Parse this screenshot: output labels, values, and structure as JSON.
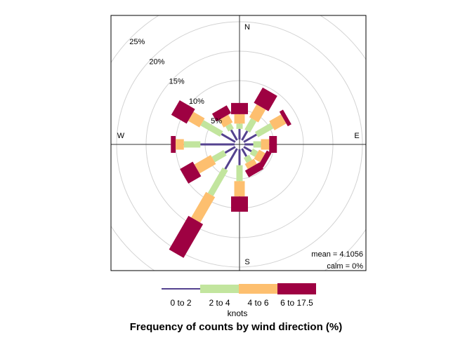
{
  "chart_data": {
    "type": "windrose",
    "title": "Frequency of counts by wind direction (%)",
    "legend_title": "knots",
    "compass": [
      "N",
      "E",
      "S",
      "W"
    ],
    "annotations": [
      "mean = 4.1056",
      "calm = 0%"
    ],
    "annotation_color": "#228b22",
    "x": [
      0,
      30,
      60,
      90,
      120,
      150,
      180,
      210,
      240,
      270,
      300,
      330
    ],
    "rlim": [
      0,
      25
    ],
    "rticks": [
      {
        "value": 5,
        "label": "5%"
      },
      {
        "value": 10,
        "label": "10%"
      },
      {
        "value": 15,
        "label": "15%"
      },
      {
        "value": 20,
        "label": "20%"
      },
      {
        "value": 25,
        "label": "25%"
      }
    ],
    "grid": true,
    "series": [
      {
        "name": "0 to 2",
        "color": "#54428f",
        "values": [
          1.8,
          1.8,
          2.5,
          1.5,
          1.5,
          1.5,
          2.7,
          4,
          2,
          5.8,
          2.7,
          2
        ]
      },
      {
        "name": "2 to 4",
        "color": "#c2e59e",
        "values": [
          0.9,
          2.2,
          3,
          1.3,
          1,
          1,
          2.7,
          5,
          2.3,
          2.8,
          3.8,
          1
        ]
      },
      {
        "name": "4 to 6",
        "color": "#fdbf6f",
        "values": [
          1.6,
          2.5,
          2.3,
          1.4,
          1.2,
          1,
          2.6,
          5,
          3.2,
          1.4,
          2.2,
          1.5
        ]
      },
      {
        "name": "6 to 17.5",
        "color": "#9e0142",
        "values": [
          1.9,
          3,
          0.7,
          1.3,
          0.9,
          1.3,
          2.6,
          6.6,
          2.5,
          0.8,
          3,
          1.5
        ]
      }
    ]
  }
}
